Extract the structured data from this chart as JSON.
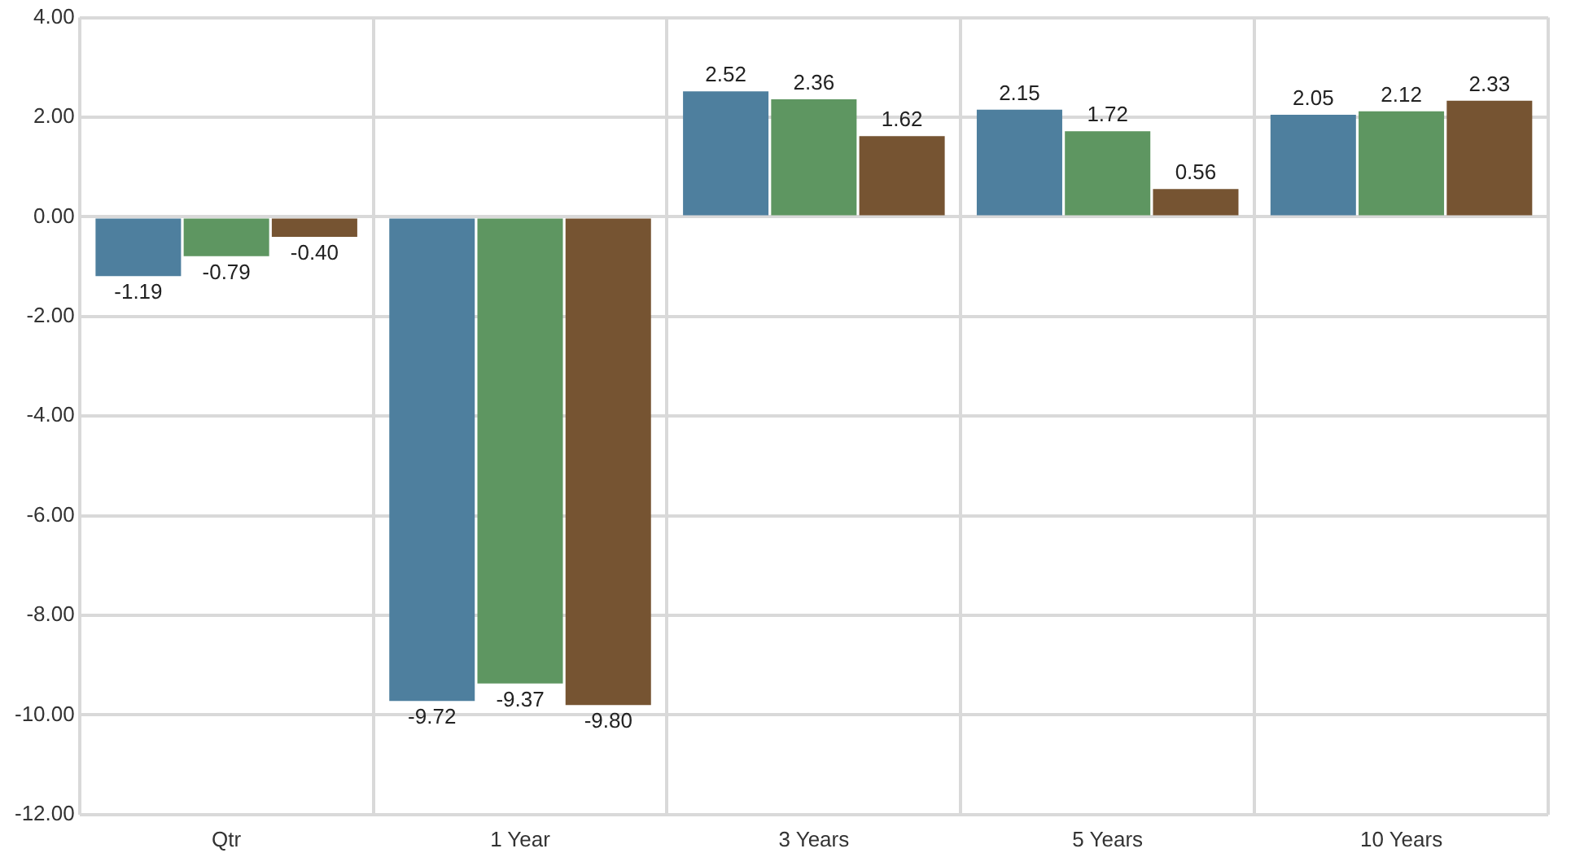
{
  "chart_data": {
    "type": "bar",
    "categories": [
      "Qtr",
      "1 Year",
      "3 Years",
      "5 Years",
      "10 Years"
    ],
    "series": [
      {
        "color": "#4e7f9e",
        "values": [
          -1.19,
          -9.72,
          2.52,
          2.15,
          2.05
        ],
        "value_labels": [
          "-1.19",
          "-9.72",
          "2.52",
          "2.15",
          "2.05"
        ]
      },
      {
        "color": "#5e9661",
        "values": [
          -0.79,
          -9.37,
          2.36,
          1.72,
          2.12
        ],
        "value_labels": [
          "-0.79",
          "-9.37",
          "2.36",
          "1.72",
          "2.12"
        ]
      },
      {
        "color": "#765432",
        "values": [
          -0.4,
          -9.8,
          1.62,
          0.56,
          2.33
        ],
        "value_labels": [
          "-0.40",
          "-9.80",
          "1.62",
          "0.56",
          "2.33"
        ]
      }
    ],
    "ylim": [
      -12,
      4
    ],
    "yticks": [
      {
        "value": -12,
        "label": "-12.00"
      },
      {
        "value": -10,
        "label": "-10.00"
      },
      {
        "value": -8,
        "label": "-8.00"
      },
      {
        "value": -6,
        "label": "-6.00"
      },
      {
        "value": -4,
        "label": "-4.00"
      },
      {
        "value": -2,
        "label": "-2.00"
      },
      {
        "value": 0,
        "label": "0.00"
      },
      {
        "value": 2,
        "label": "2.00"
      },
      {
        "value": 4,
        "label": "4.00"
      }
    ],
    "grid": true,
    "legend": false
  }
}
